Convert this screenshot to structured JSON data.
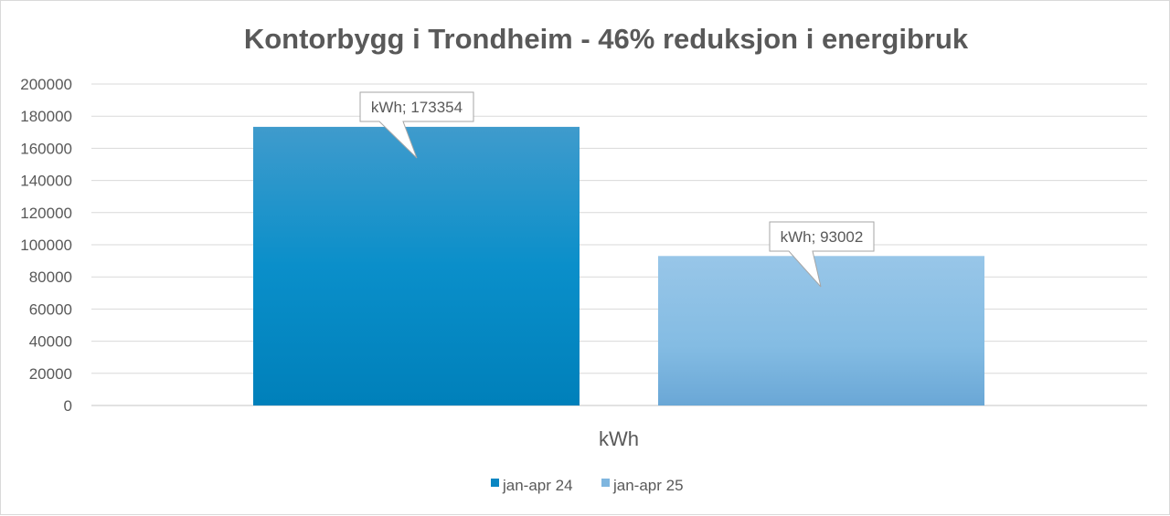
{
  "chart_data": {
    "type": "bar",
    "title": "Kontorbygg i Trondheim - 46% reduksjon i energibruk",
    "categories": [
      "kWh"
    ],
    "series": [
      {
        "name": "jan-apr 24",
        "values": [
          173354
        ],
        "color": "#0a86c2",
        "color_light": "#3f9bcc",
        "data_label": "kWh; 173354"
      },
      {
        "name": "jan-apr 25",
        "values": [
          93002
        ],
        "color": "#7fb6df",
        "color_light": "#98c6e8",
        "data_label": "kWh; 93002"
      }
    ],
    "yticks": [
      "0",
      "20000",
      "40000",
      "60000",
      "80000",
      "100000",
      "120000",
      "140000",
      "160000",
      "180000",
      "200000"
    ],
    "ylim": [
      0,
      200000
    ],
    "grid": true,
    "legend": "bottom",
    "gridline_color": "#d9d9d9",
    "text_color": "#595959"
  }
}
